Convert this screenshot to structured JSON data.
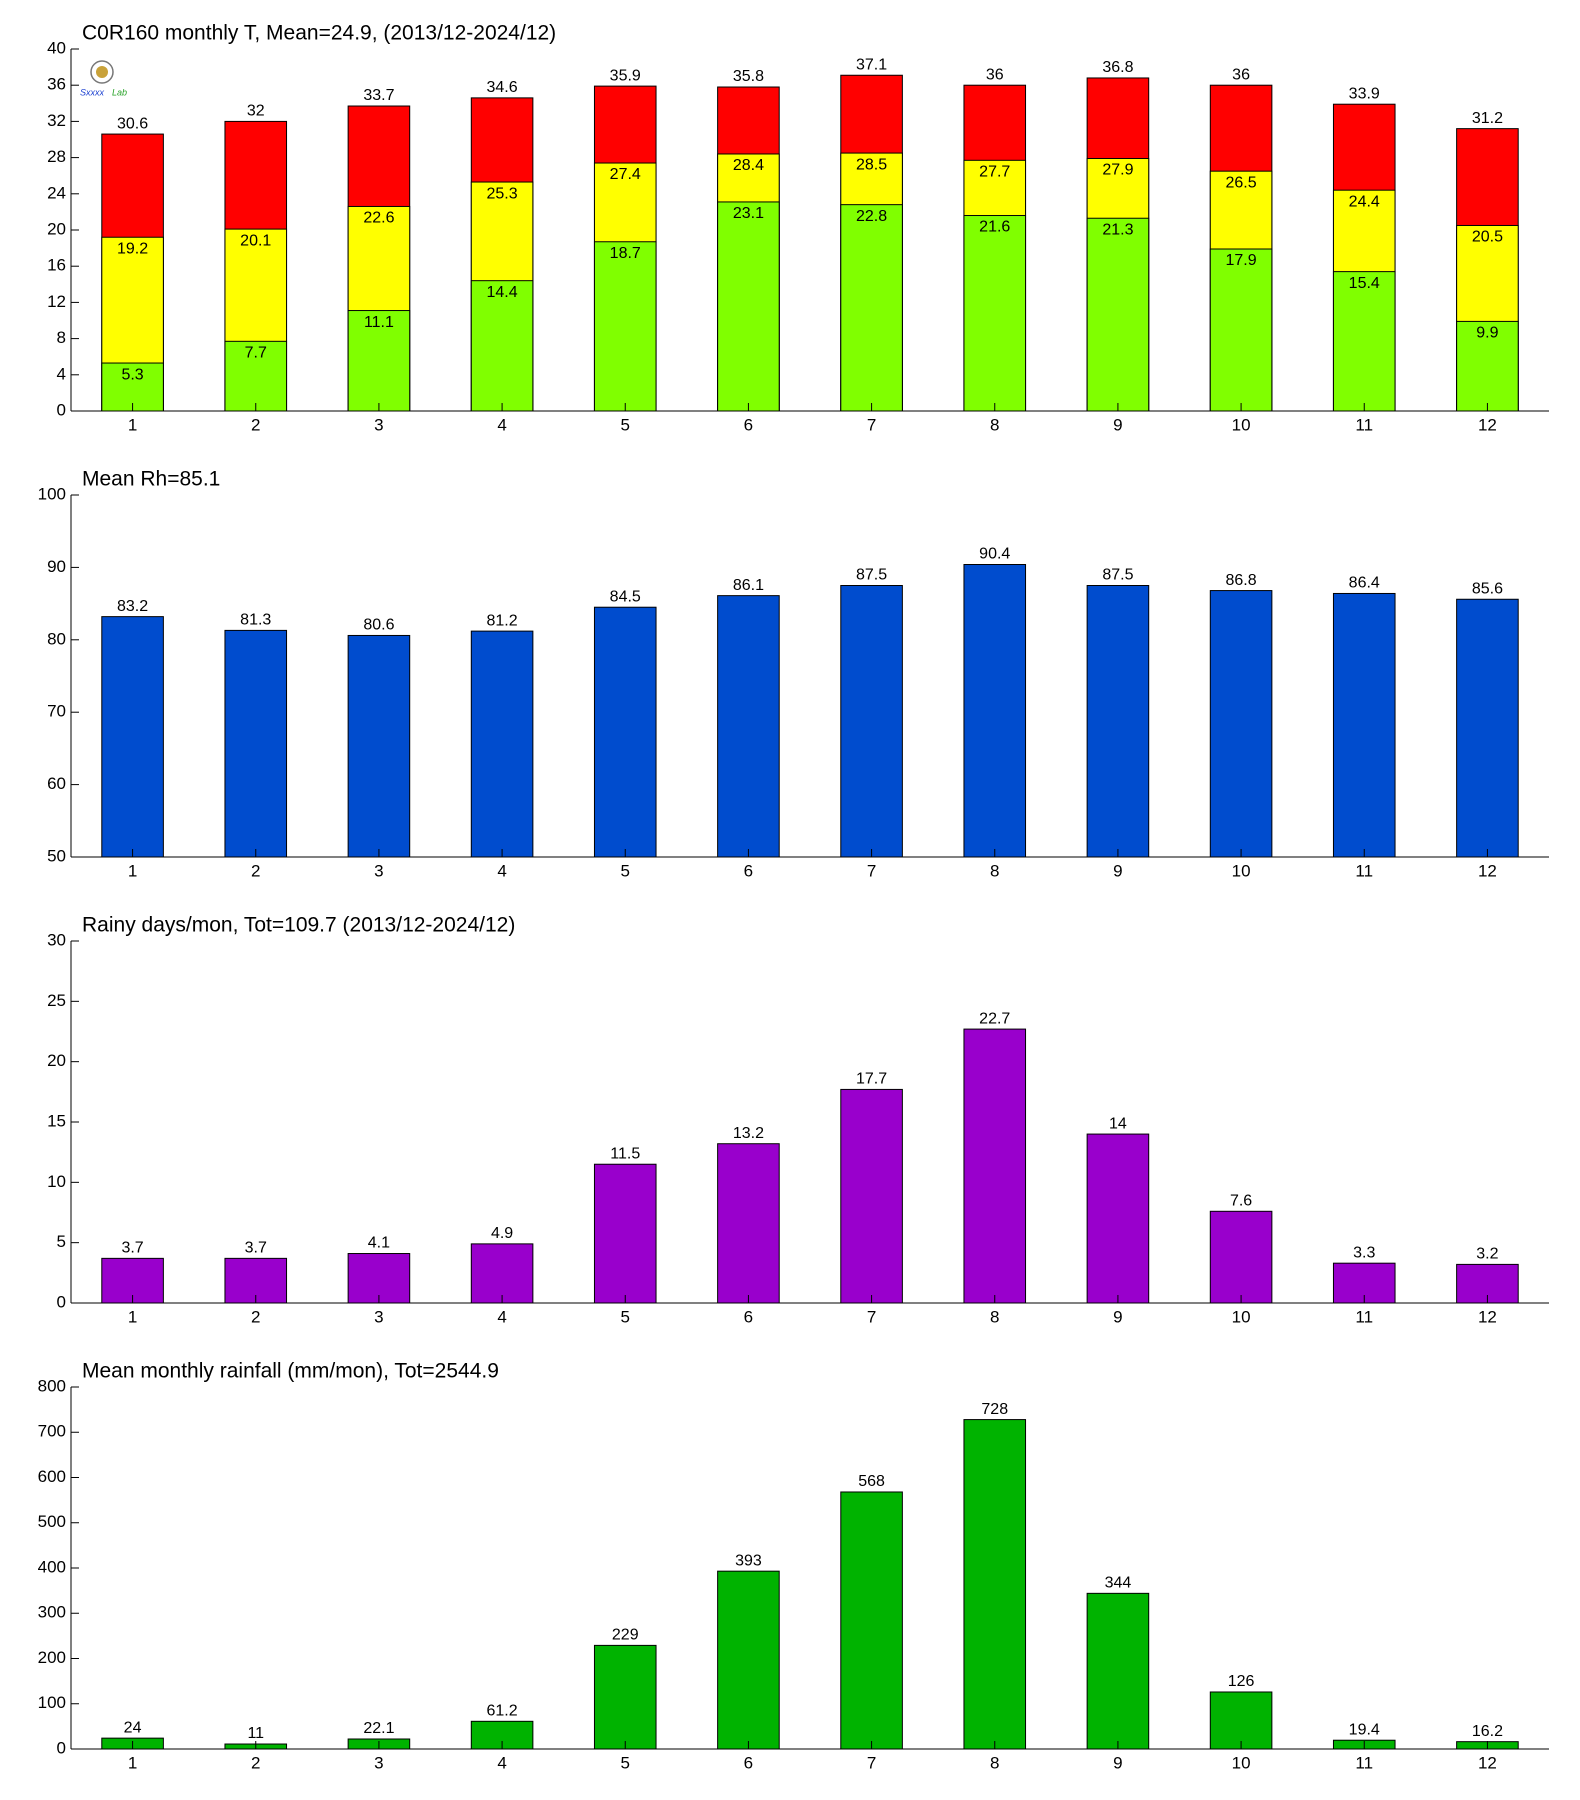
{
  "chart_data": [
    {
      "type": "bar",
      "title": "C0R160 monthly T, Mean=24.9, (2013/12-2024/12)",
      "categories": [
        "1",
        "2",
        "3",
        "4",
        "5",
        "6",
        "7",
        "8",
        "9",
        "10",
        "11",
        "12"
      ],
      "series": [
        {
          "color": "#ff0000",
          "values": [
            30.6,
            32,
            33.7,
            34.6,
            35.9,
            35.8,
            37.1,
            36,
            36.8,
            36,
            33.9,
            31.2
          ]
        },
        {
          "color": "#ffff00",
          "values": [
            19.2,
            20.1,
            22.6,
            25.3,
            27.4,
            28.4,
            28.5,
            27.7,
            27.9,
            26.5,
            24.4,
            20.5
          ]
        },
        {
          "color": "#80ff00",
          "values": [
            5.3,
            7.7,
            11.1,
            14.4,
            18.7,
            23.1,
            22.8,
            21.6,
            21.3,
            17.9,
            15.4,
            9.9
          ]
        }
      ],
      "ylim": [
        0,
        40
      ],
      "yticks": [
        0,
        4,
        8,
        12,
        16,
        20,
        24,
        28,
        32,
        36,
        40
      ]
    },
    {
      "type": "bar",
      "title": "Mean Rh=85.1",
      "categories": [
        "1",
        "2",
        "3",
        "4",
        "5",
        "6",
        "7",
        "8",
        "9",
        "10",
        "11",
        "12"
      ],
      "series": [
        {
          "color": "#004cce",
          "values": [
            83.2,
            81.3,
            80.6,
            81.2,
            84.5,
            86.1,
            87.5,
            90.4,
            87.5,
            86.8,
            86.4,
            85.6
          ]
        }
      ],
      "ylim": [
        50,
        100
      ],
      "yticks": [
        50,
        60,
        70,
        80,
        90,
        100
      ]
    },
    {
      "type": "bar",
      "title": "Rainy days/mon, Tot=109.7 (2013/12-2024/12)",
      "categories": [
        "1",
        "2",
        "3",
        "4",
        "5",
        "6",
        "7",
        "8",
        "9",
        "10",
        "11",
        "12"
      ],
      "series": [
        {
          "color": "#9900cc",
          "values": [
            3.7,
            3.7,
            4.1,
            4.9,
            11.5,
            13.2,
            17.7,
            22.7,
            14,
            7.6,
            3.3,
            3.2
          ]
        }
      ],
      "ylim": [
        0,
        30
      ],
      "yticks": [
        0,
        5,
        10,
        15,
        20,
        25,
        30
      ]
    },
    {
      "type": "bar",
      "title": "Mean monthly rainfall (mm/mon), Tot=2544.9",
      "categories": [
        "1",
        "2",
        "3",
        "4",
        "5",
        "6",
        "7",
        "8",
        "9",
        "10",
        "11",
        "12"
      ],
      "series": [
        {
          "color": "#00b300",
          "values": [
            24,
            11,
            22.1,
            61.2,
            229,
            393,
            568,
            728,
            344,
            126,
            19.4,
            16.2
          ]
        }
      ],
      "ylim": [
        0,
        800
      ],
      "yticks": [
        0,
        100,
        200,
        300,
        400,
        500,
        600,
        700,
        800
      ]
    }
  ]
}
